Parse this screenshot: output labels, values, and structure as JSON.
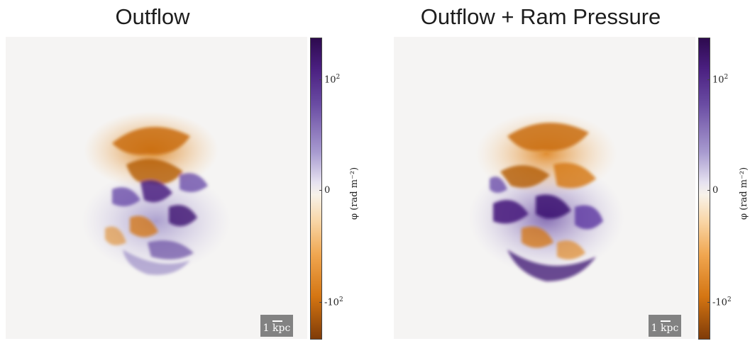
{
  "panels": [
    {
      "title": "Outflow",
      "scalebar": "1 kpc",
      "colorbar": {
        "ticks": [
          "10",
          "0",
          "-10"
        ],
        "exponent": "2",
        "label": "φ (rad m⁻²)"
      }
    },
    {
      "title": "Outflow + Ram Pressure",
      "scalebar": "1 kpc",
      "colorbar": {
        "ticks": [
          "10",
          "0",
          "-10"
        ],
        "exponent": "2",
        "label": "φ (rad m⁻²)"
      }
    }
  ],
  "colors": {
    "background": "#f5f4f3",
    "positive": "#3b1270",
    "negative": "#b35806",
    "neutral": "#f7f7f7"
  }
}
